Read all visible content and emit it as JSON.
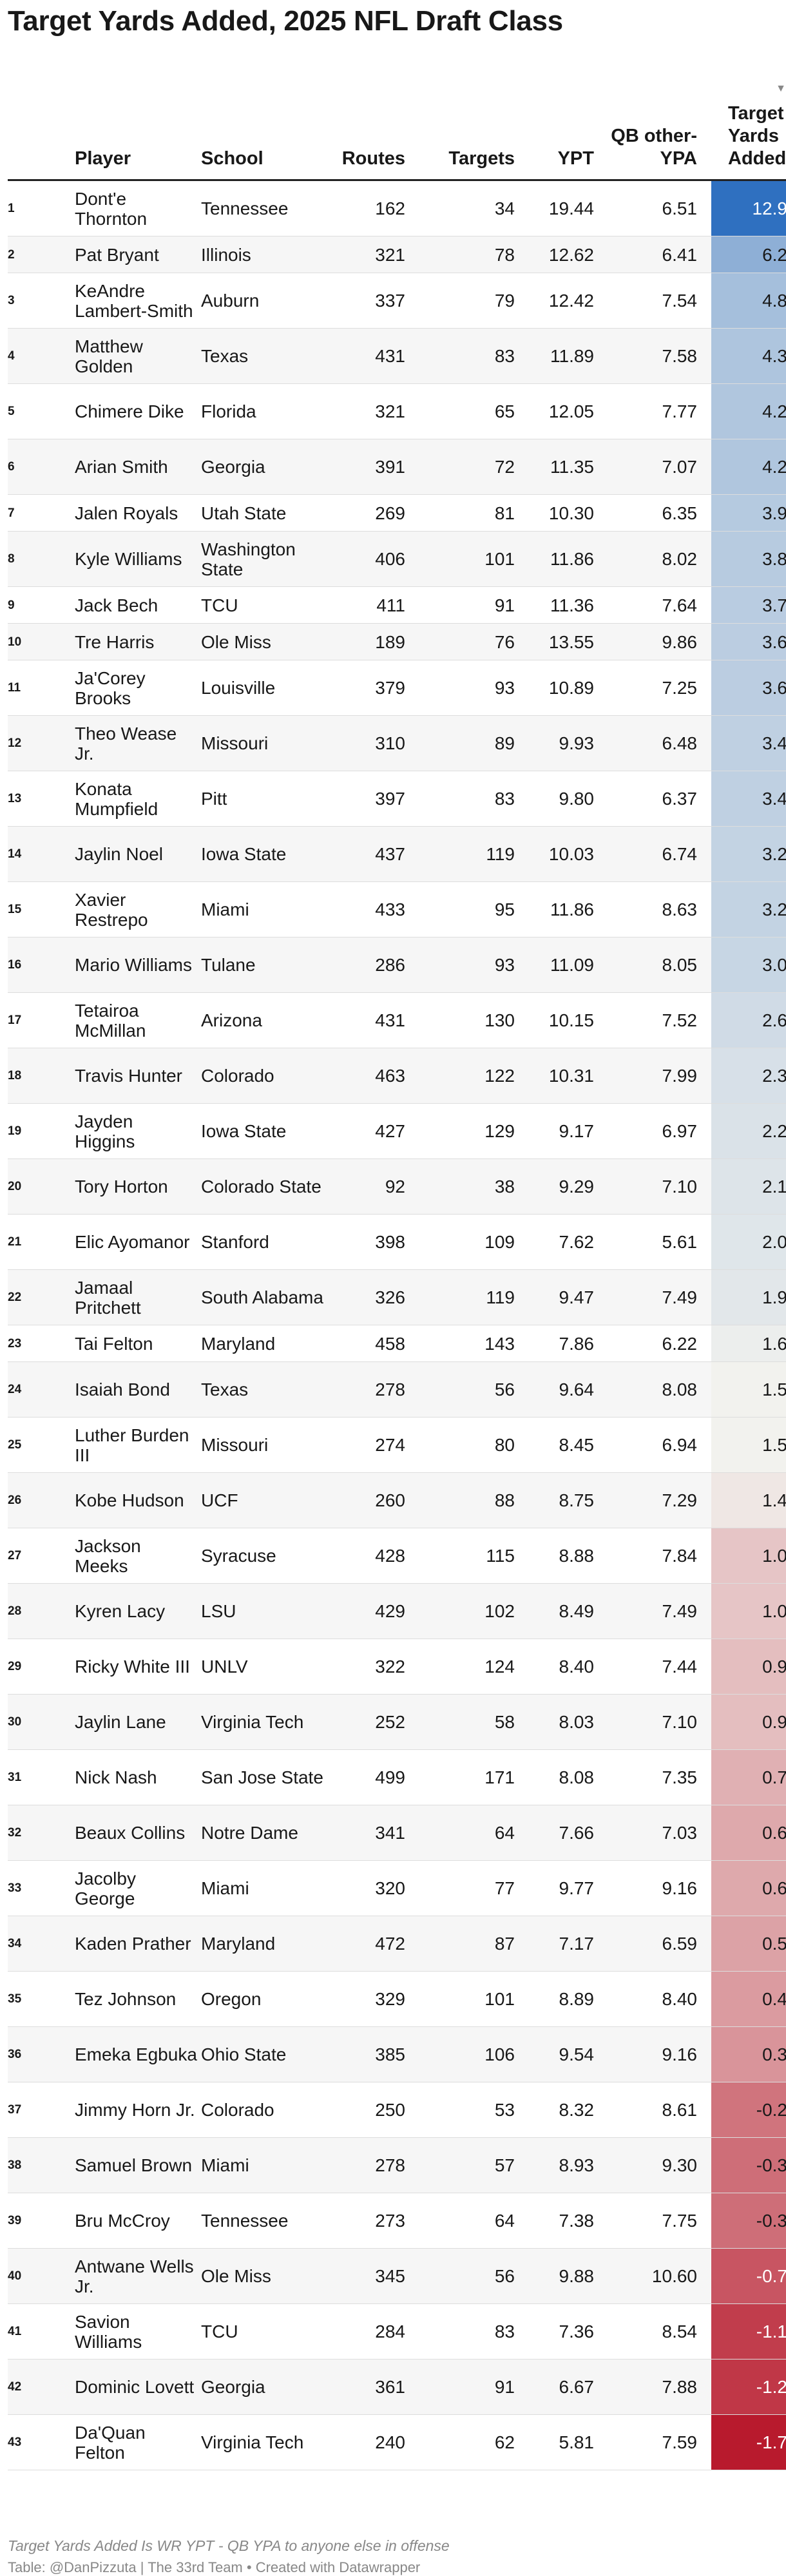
{
  "title": "Target Yards Added, 2025 NFL Draft Class",
  "note": "Target Yards Added Is WR YPT - QB YPA to anyone else in offense",
  "credit": "Table: @DanPizzuta | The 33rd Team • Created with Datawrapper",
  "sort_icon": "sort-descending-arrow-icon",
  "chart_data": {
    "type": "table",
    "sorted_by": "Target Yards Added",
    "sort_order": "descending",
    "columns": [
      "",
      "Player",
      "School",
      "Routes",
      "Targets",
      "YPT",
      "QB other-YPA",
      "Target Yards Added"
    ],
    "heat_colors": {
      "high": "#2f70c0",
      "mid": "#f2f2ee",
      "low": "#b81a2d",
      "mid_value": 1.5
    },
    "rows": [
      [
        "1",
        "Dont'e Thornton",
        "Tennessee",
        "162",
        "34",
        "19.44",
        "6.51",
        "12.9"
      ],
      [
        "2",
        "Pat Bryant",
        "Illinois",
        "321",
        "78",
        "12.62",
        "6.41",
        "6.2"
      ],
      [
        "3",
        "KeAndre Lambert-Smith",
        "Auburn",
        "337",
        "79",
        "12.42",
        "7.54",
        "4.8"
      ],
      [
        "4",
        "Matthew Golden",
        "Texas",
        "431",
        "83",
        "11.89",
        "7.58",
        "4.3"
      ],
      [
        "5",
        "Chimere Dike",
        "Florida",
        "321",
        "65",
        "12.05",
        "7.77",
        "4.2"
      ],
      [
        "6",
        "Arian Smith",
        "Georgia",
        "391",
        "72",
        "11.35",
        "7.07",
        "4.2"
      ],
      [
        "7",
        "Jalen Royals",
        "Utah State",
        "269",
        "81",
        "10.30",
        "6.35",
        "3.9"
      ],
      [
        "8",
        "Kyle Williams",
        "Washington State",
        "406",
        "101",
        "11.86",
        "8.02",
        "3.8"
      ],
      [
        "9",
        "Jack Bech",
        "TCU",
        "411",
        "91",
        "11.36",
        "7.64",
        "3.7"
      ],
      [
        "10",
        "Tre Harris",
        "Ole Miss",
        "189",
        "76",
        "13.55",
        "9.86",
        "3.6"
      ],
      [
        "11",
        "Ja'Corey Brooks",
        "Louisville",
        "379",
        "93",
        "10.89",
        "7.25",
        "3.6"
      ],
      [
        "12",
        "Theo Wease Jr.",
        "Missouri",
        "310",
        "89",
        "9.93",
        "6.48",
        "3.4"
      ],
      [
        "13",
        "Konata Mumpfield",
        "Pitt",
        "397",
        "83",
        "9.80",
        "6.37",
        "3.4"
      ],
      [
        "14",
        "Jaylin Noel",
        "Iowa State",
        "437",
        "119",
        "10.03",
        "6.74",
        "3.2"
      ],
      [
        "15",
        "Xavier Restrepo",
        "Miami",
        "433",
        "95",
        "11.86",
        "8.63",
        "3.2"
      ],
      [
        "16",
        "Mario Williams",
        "Tulane",
        "286",
        "93",
        "11.09",
        "8.05",
        "3.0"
      ],
      [
        "17",
        "Tetairoa McMillan",
        "Arizona",
        "431",
        "130",
        "10.15",
        "7.52",
        "2.6"
      ],
      [
        "18",
        "Travis Hunter",
        "Colorado",
        "463",
        "122",
        "10.31",
        "7.99",
        "2.3"
      ],
      [
        "19",
        "Jayden Higgins",
        "Iowa State",
        "427",
        "129",
        "9.17",
        "6.97",
        "2.2"
      ],
      [
        "20",
        "Tory Horton",
        "Colorado State",
        "92",
        "38",
        "9.29",
        "7.10",
        "2.1"
      ],
      [
        "21",
        "Elic Ayomanor",
        "Stanford",
        "398",
        "109",
        "7.62",
        "5.61",
        "2.0"
      ],
      [
        "22",
        "Jamaal Pritchett",
        "South Alabama",
        "326",
        "119",
        "9.47",
        "7.49",
        "1.9"
      ],
      [
        "23",
        "Tai Felton",
        "Maryland",
        "458",
        "143",
        "7.86",
        "6.22",
        "1.6"
      ],
      [
        "24",
        "Isaiah Bond",
        "Texas",
        "278",
        "56",
        "9.64",
        "8.08",
        "1.5"
      ],
      [
        "25",
        "Luther Burden III",
        "Missouri",
        "274",
        "80",
        "8.45",
        "6.94",
        "1.5"
      ],
      [
        "26",
        "Kobe Hudson",
        "UCF",
        "260",
        "88",
        "8.75",
        "7.29",
        "1.4"
      ],
      [
        "27",
        "Jackson Meeks",
        "Syracuse",
        "428",
        "115",
        "8.88",
        "7.84",
        "1.0"
      ],
      [
        "28",
        "Kyren Lacy",
        "LSU",
        "429",
        "102",
        "8.49",
        "7.49",
        "1.0"
      ],
      [
        "29",
        "Ricky White III",
        "UNLV",
        "322",
        "124",
        "8.40",
        "7.44",
        "0.9"
      ],
      [
        "30",
        "Jaylin Lane",
        "Virginia Tech",
        "252",
        "58",
        "8.03",
        "7.10",
        "0.9"
      ],
      [
        "31",
        "Nick Nash",
        "San Jose State",
        "499",
        "171",
        "8.08",
        "7.35",
        "0.7"
      ],
      [
        "32",
        "Beaux Collins",
        "Notre Dame",
        "341",
        "64",
        "7.66",
        "7.03",
        "0.6"
      ],
      [
        "33",
        "Jacolby George",
        "Miami",
        "320",
        "77",
        "9.77",
        "9.16",
        "0.6"
      ],
      [
        "34",
        "Kaden Prather",
        "Maryland",
        "472",
        "87",
        "7.17",
        "6.59",
        "0.5"
      ],
      [
        "35",
        "Tez Johnson",
        "Oregon",
        "329",
        "101",
        "8.89",
        "8.40",
        "0.4"
      ],
      [
        "36",
        "Emeka Egbuka",
        "Ohio State",
        "385",
        "106",
        "9.54",
        "9.16",
        "0.3"
      ],
      [
        "37",
        "Jimmy Horn Jr.",
        "Colorado",
        "250",
        "53",
        "8.32",
        "8.61",
        "-0.2"
      ],
      [
        "38",
        "Samuel Brown",
        "Miami",
        "278",
        "57",
        "8.93",
        "9.30",
        "-0.3"
      ],
      [
        "39",
        "Bru McCroy",
        "Tennessee",
        "273",
        "64",
        "7.38",
        "7.75",
        "-0.3"
      ],
      [
        "40",
        "Antwane Wells Jr.",
        "Ole Miss",
        "345",
        "56",
        "9.88",
        "10.60",
        "-0.7"
      ],
      [
        "41",
        "Savion Williams",
        "TCU",
        "284",
        "83",
        "7.36",
        "8.54",
        "-1.1"
      ],
      [
        "42",
        "Dominic Lovett",
        "Georgia",
        "361",
        "91",
        "6.67",
        "7.88",
        "-1.2"
      ],
      [
        "43",
        "Da'Quan Felton",
        "Virginia Tech",
        "240",
        "62",
        "5.81",
        "7.59",
        "-1.7"
      ]
    ]
  }
}
